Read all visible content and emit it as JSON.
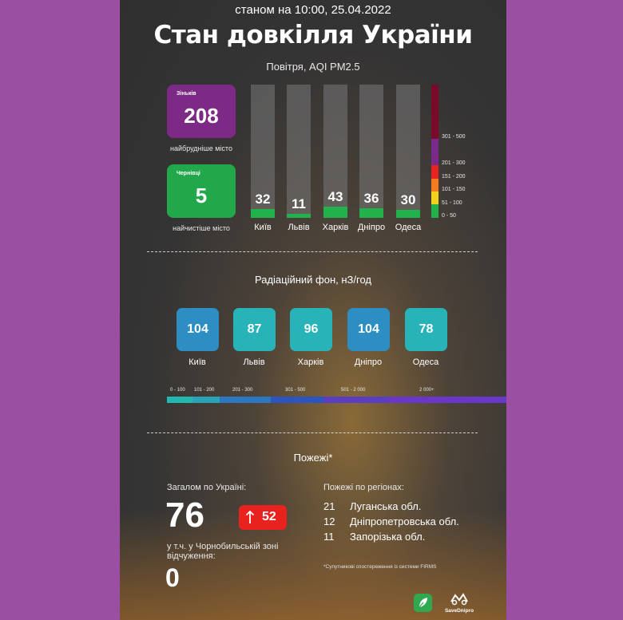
{
  "header": {
    "timestamp": "станом на 10:00, 25.04.2022",
    "title": "Стан довкілля України",
    "subtitle": "Повітря, AQI PM2.5"
  },
  "air": {
    "dirtiest": {
      "city": "Зіньків",
      "value": "208",
      "caption": "найбрудніше місто",
      "color": "#7c2a86"
    },
    "cleanest": {
      "city": "Чернівці",
      "value": "5",
      "caption": "найчистіше місто",
      "color": "#22a84a"
    },
    "cities": [
      {
        "name": "Київ",
        "value": 32
      },
      {
        "name": "Львів",
        "value": 11
      },
      {
        "name": "Харків",
        "value": 43
      },
      {
        "name": "Дніпро",
        "value": 36
      },
      {
        "name": "Одеса",
        "value": 30
      }
    ],
    "scale": [
      {
        "label": "301 - 500",
        "color": "#7b0a2a"
      },
      {
        "label": "201 - 300",
        "color": "#7b2a8c"
      },
      {
        "label": "151 - 200",
        "color": "#e8221e"
      },
      {
        "label": "101 - 150",
        "color": "#f47b20"
      },
      {
        "label": "51 - 100",
        "color": "#f2d21a"
      },
      {
        "label": "0 - 50",
        "color": "#22b24c"
      }
    ]
  },
  "radiation": {
    "title": "Радіаційний фон, нЗ/год",
    "cities": [
      {
        "name": "Київ",
        "value": "104",
        "color": "#2d8ec4"
      },
      {
        "name": "Львів",
        "value": "87",
        "color": "#27b3b8"
      },
      {
        "name": "Харків",
        "value": "96",
        "color": "#27b3b8"
      },
      {
        "name": "Дніпро",
        "value": "104",
        "color": "#2d8ec4"
      },
      {
        "name": "Одеса",
        "value": "78",
        "color": "#27b3b8"
      }
    ],
    "legend": [
      {
        "label": "0 - 100",
        "color": "#22b8b0"
      },
      {
        "label": "101 - 200",
        "color": "#2aa3b8"
      },
      {
        "label": "201 - 300",
        "color": "#2b77c0"
      },
      {
        "label": "301 - 500",
        "color": "#2d55c0"
      },
      {
        "label": "501 - 2 000",
        "color": "#5b3fc0"
      },
      {
        "label": "2 000+",
        "color": "#6a38c8"
      }
    ]
  },
  "fires": {
    "title": "Пожежі*",
    "total_label": "Загалом по Україні:",
    "total": "76",
    "change": "52",
    "change_color": "#e8221e",
    "chornobyl_label": "у т.ч. у Чорнобильській зоні відчуження:",
    "chornobyl_value": "0",
    "regions_title": "Пожежі по регіонах:",
    "regions": [
      {
        "count": "21",
        "name": "Луганська обл."
      },
      {
        "count": "12",
        "name": "Дніпропетровська обл."
      },
      {
        "count": "11",
        "name": "Запорізька обл."
      }
    ],
    "footnote": "*Супутникові спостереження із системи FIRMS",
    "logo_text": "SaveDnipro"
  }
}
